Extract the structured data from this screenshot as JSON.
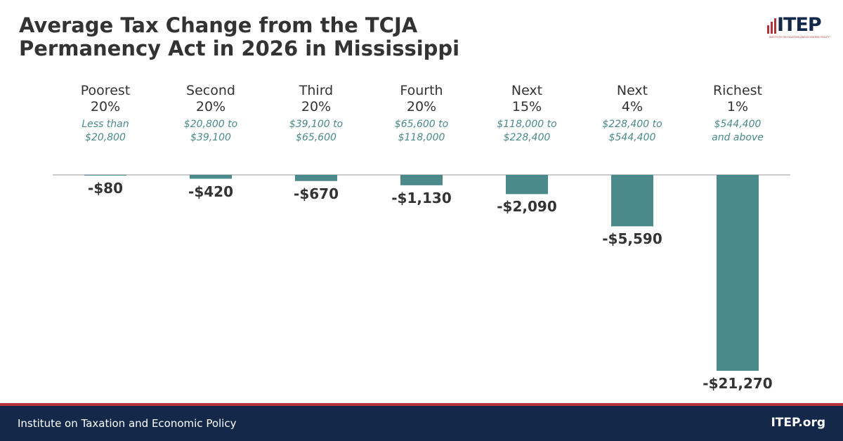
{
  "logo": {
    "text": "ITEP",
    "subtext": "INSTITUTE ON TAXATION AND ECONOMIC POLICY"
  },
  "chart_data": {
    "type": "bar",
    "title": "Average Tax Change from the TCJA\nPermanency Act in 2026 in Mississippi",
    "categories": [
      "Poorest\n20%",
      "Second\n20%",
      "Third\n20%",
      "Fourth\n20%",
      "Next\n15%",
      "Next\n4%",
      "Richest\n1%"
    ],
    "income_ranges": [
      "Less than\n$20,800",
      "$20,800 to\n$39,100",
      "$39,100 to\n$65,600",
      "$65,600 to\n$118,000",
      "$118,000 to\n$228,400",
      "$228,400 to\n$544,400",
      "$544,400\nand above"
    ],
    "values": [
      -80,
      -420,
      -670,
      -1130,
      -2090,
      -5590,
      -21270
    ],
    "value_labels": [
      "-$80",
      "-$420",
      "-$670",
      "-$1,130",
      "-$2,090",
      "-$5,590",
      "-$21,270"
    ],
    "color": "#4a8a8a"
  },
  "footer": {
    "left": "Institute on Taxation and Economic Policy",
    "right": "ITEP.org"
  }
}
